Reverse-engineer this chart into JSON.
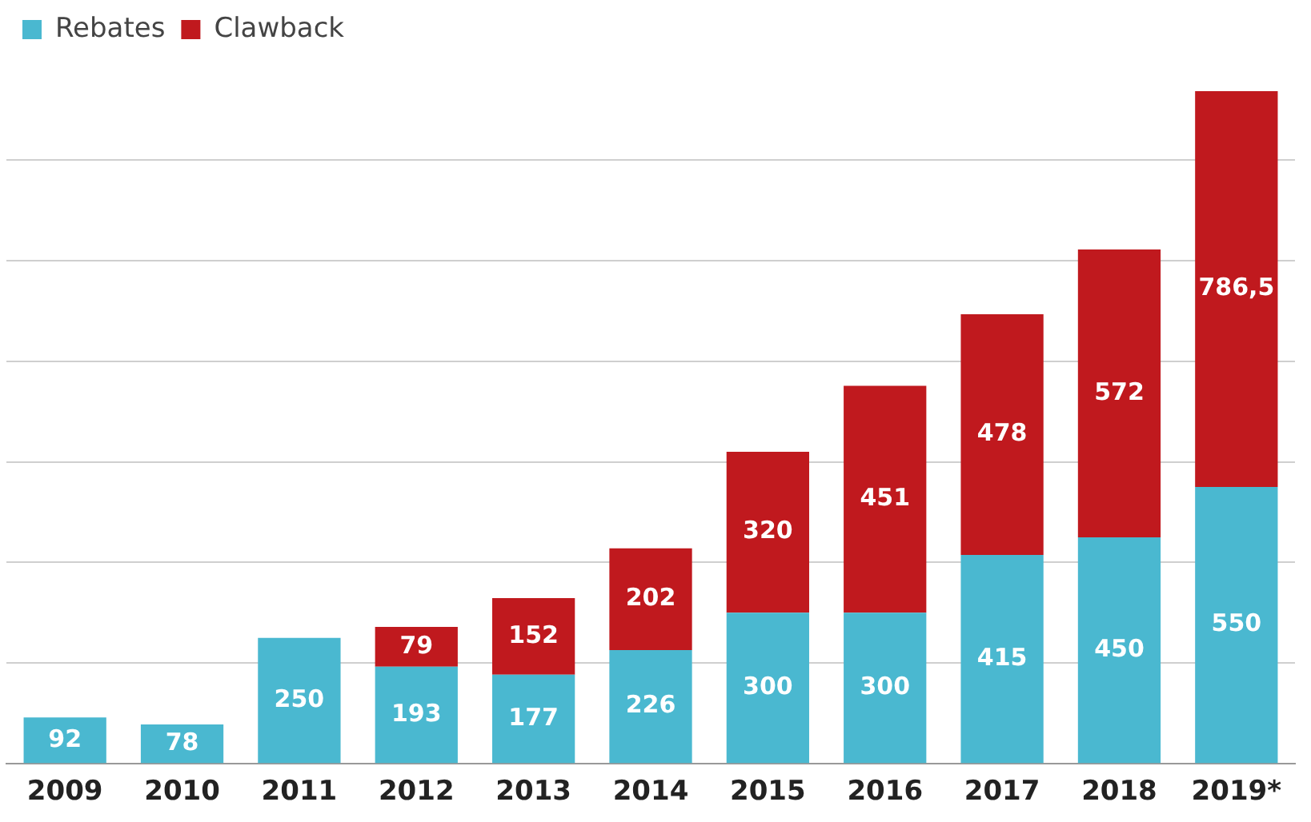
{
  "chart_data": {
    "type": "bar",
    "stacked": true,
    "categories": [
      "2009",
      "2010",
      "2011",
      "2012",
      "2013",
      "2014",
      "2015",
      "2016",
      "2017",
      "2018",
      "2019*"
    ],
    "series": [
      {
        "name": "Rebates",
        "color": "#4ab8d0",
        "values": [
          92,
          78,
          250,
          193,
          177,
          226,
          300,
          300,
          415,
          450,
          550
        ],
        "value_labels": [
          "92",
          "78",
          "250",
          "193",
          "177",
          "226",
          "300",
          "300",
          "415",
          "450",
          "550"
        ]
      },
      {
        "name": "Clawback",
        "color": "#c0191e",
        "values": [
          null,
          null,
          null,
          79,
          152,
          202,
          320,
          451,
          478,
          572,
          786.5
        ],
        "value_labels": [
          null,
          null,
          null,
          "79",
          "152",
          "202",
          "320",
          "451",
          "478",
          "572",
          "786,5"
        ]
      }
    ],
    "yticks": [
      {
        "value": 0,
        "label": null
      },
      {
        "value": 200,
        "label": null
      },
      {
        "value": 400,
        "label": null
      },
      {
        "value": 600,
        "label": null
      },
      {
        "value": 800,
        "label": null
      },
      {
        "value": 1000,
        "label": null
      },
      {
        "value": 1200,
        "label": null
      }
    ],
    "tick_labels": "x",
    "grid": "y",
    "legend": "top left"
  }
}
